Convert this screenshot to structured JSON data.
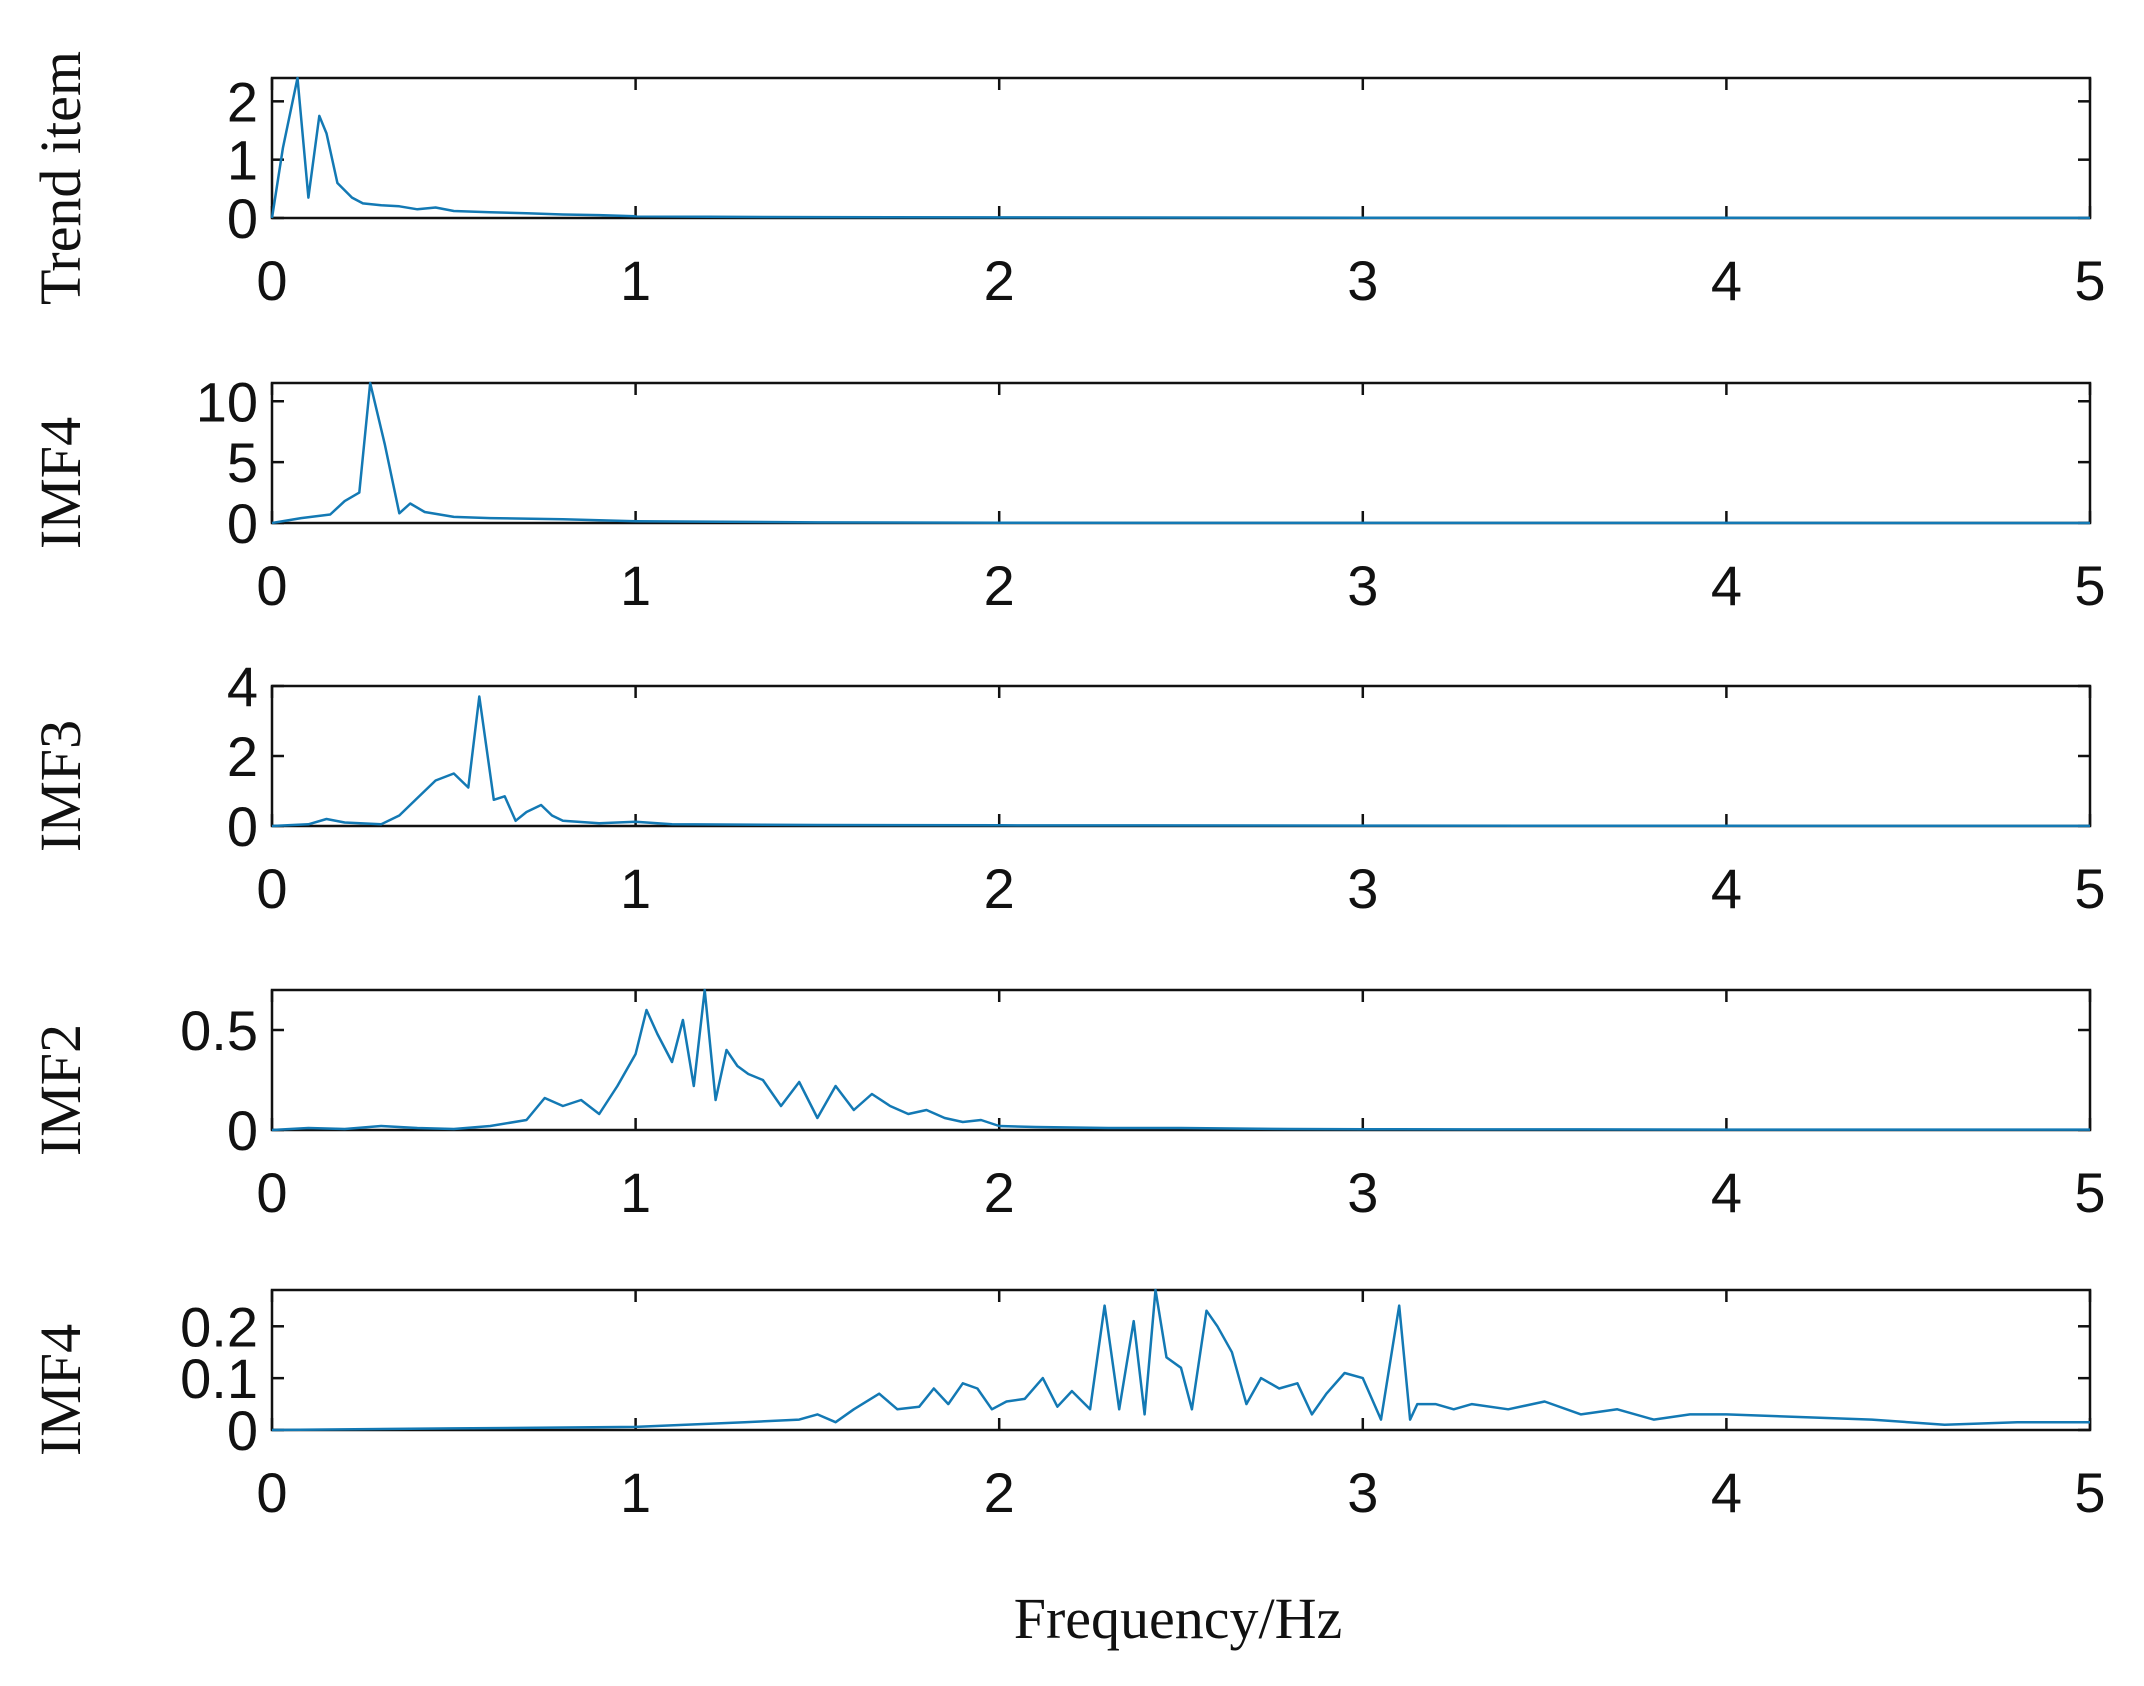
{
  "figure": {
    "xlabel": "Frequency/Hz",
    "line_color": "#1379b4"
  },
  "chart_data": [
    {
      "type": "line",
      "ylabel": "Trend item",
      "xlim": [
        0,
        5
      ],
      "ylim": [
        0,
        2.4
      ],
      "xticks": [
        "0",
        "1",
        "2",
        "3",
        "4",
        "5"
      ],
      "yticks": [
        0,
        1,
        2
      ],
      "ytick_labels": [
        "0",
        "1",
        "2"
      ],
      "x": [
        0,
        0.03,
        0.07,
        0.1,
        0.13,
        0.15,
        0.18,
        0.22,
        0.25,
        0.3,
        0.35,
        0.4,
        0.45,
        0.5,
        0.6,
        0.7,
        0.8,
        0.9,
        1.0,
        1.2,
        1.5,
        2.0,
        3.0,
        4.0,
        5.0
      ],
      "y": [
        0,
        1.2,
        2.4,
        0.35,
        1.75,
        1.45,
        0.6,
        0.35,
        0.25,
        0.22,
        0.2,
        0.15,
        0.18,
        0.12,
        0.1,
        0.08,
        0.06,
        0.05,
        0.03,
        0.02,
        0.015,
        0.01,
        0.005,
        0.003,
        0.002
      ]
    },
    {
      "type": "line",
      "ylabel": "IMF4",
      "xlim": [
        0,
        5
      ],
      "ylim": [
        0,
        11.5
      ],
      "xticks": [
        "0",
        "1",
        "2",
        "3",
        "4",
        "5"
      ],
      "yticks": [
        0,
        5,
        10
      ],
      "ytick_labels": [
        "0",
        "5",
        "10"
      ],
      "x": [
        0,
        0.08,
        0.16,
        0.2,
        0.24,
        0.27,
        0.31,
        0.35,
        0.38,
        0.42,
        0.5,
        0.6,
        0.8,
        1.0,
        1.5,
        2.0,
        3.0,
        4.0,
        5.0
      ],
      "y": [
        0,
        0.4,
        0.7,
        1.8,
        2.5,
        11.5,
        6.5,
        0.8,
        1.6,
        0.9,
        0.5,
        0.4,
        0.3,
        0.15,
        0.05,
        0.02,
        0.01,
        0.005,
        0.003
      ]
    },
    {
      "type": "line",
      "ylabel": "IMF3",
      "xlim": [
        0,
        5
      ],
      "ylim": [
        0,
        4
      ],
      "xticks": [
        "0",
        "1",
        "2",
        "3",
        "4",
        "5"
      ],
      "yticks": [
        0,
        2,
        4
      ],
      "ytick_labels": [
        "0",
        "2",
        "4"
      ],
      "x": [
        0,
        0.1,
        0.15,
        0.2,
        0.3,
        0.35,
        0.4,
        0.45,
        0.5,
        0.54,
        0.57,
        0.61,
        0.64,
        0.67,
        0.7,
        0.74,
        0.77,
        0.8,
        0.9,
        1.0,
        1.1,
        1.5,
        2.0,
        3.0,
        4.0,
        5.0
      ],
      "y": [
        0,
        0.05,
        0.2,
        0.1,
        0.05,
        0.3,
        0.8,
        1.3,
        1.5,
        1.1,
        3.7,
        0.75,
        0.85,
        0.15,
        0.4,
        0.6,
        0.3,
        0.15,
        0.08,
        0.12,
        0.05,
        0.03,
        0.02,
        0.01,
        0.005,
        0.003
      ]
    },
    {
      "type": "line",
      "ylabel": "IMF2",
      "xlim": [
        0,
        5
      ],
      "ylim": [
        0,
        0.7
      ],
      "xticks": [
        "0",
        "1",
        "2",
        "3",
        "4",
        "5"
      ],
      "yticks": [
        0,
        0.5
      ],
      "ytick_labels": [
        "0",
        "0.5"
      ],
      "x": [
        0,
        0.1,
        0.2,
        0.3,
        0.4,
        0.5,
        0.6,
        0.7,
        0.75,
        0.8,
        0.85,
        0.9,
        0.95,
        1.0,
        1.03,
        1.06,
        1.1,
        1.13,
        1.16,
        1.19,
        1.22,
        1.25,
        1.28,
        1.31,
        1.35,
        1.4,
        1.45,
        1.5,
        1.55,
        1.6,
        1.65,
        1.7,
        1.75,
        1.8,
        1.85,
        1.9,
        1.95,
        2.0,
        2.1,
        2.3,
        2.5,
        2.8,
        3.0,
        3.3,
        3.6,
        4.0,
        4.5,
        5.0
      ],
      "y": [
        0,
        0.01,
        0.005,
        0.02,
        0.01,
        0.005,
        0.02,
        0.05,
        0.16,
        0.12,
        0.15,
        0.08,
        0.22,
        0.38,
        0.6,
        0.48,
        0.34,
        0.55,
        0.22,
        0.7,
        0.15,
        0.4,
        0.32,
        0.28,
        0.25,
        0.12,
        0.24,
        0.06,
        0.22,
        0.1,
        0.18,
        0.12,
        0.08,
        0.1,
        0.06,
        0.04,
        0.05,
        0.02,
        0.015,
        0.01,
        0.01,
        0.005,
        0.004,
        0.003,
        0.003,
        0.002,
        0.002,
        0.002
      ]
    },
    {
      "type": "line",
      "ylabel": "IMF4",
      "xlim": [
        0,
        5
      ],
      "ylim": [
        0,
        0.27
      ],
      "xticks": [
        "0",
        "1",
        "2",
        "3",
        "4",
        "5"
      ],
      "yticks": [
        0,
        0.1,
        0.2
      ],
      "ytick_labels": [
        "0",
        "0.1",
        "0.2"
      ],
      "x": [
        0,
        0.5,
        1.0,
        1.3,
        1.45,
        1.5,
        1.55,
        1.6,
        1.67,
        1.72,
        1.78,
        1.82,
        1.86,
        1.9,
        1.94,
        1.98,
        2.02,
        2.07,
        2.12,
        2.16,
        2.2,
        2.25,
        2.29,
        2.33,
        2.37,
        2.4,
        2.43,
        2.46,
        2.5,
        2.53,
        2.57,
        2.6,
        2.64,
        2.68,
        2.72,
        2.77,
        2.82,
        2.86,
        2.9,
        2.95,
        3.0,
        3.05,
        3.1,
        3.13,
        3.15,
        3.2,
        3.25,
        3.3,
        3.4,
        3.5,
        3.6,
        3.7,
        3.8,
        3.9,
        4.0,
        4.2,
        4.4,
        4.6,
        4.8,
        5.0
      ],
      "y": [
        0,
        0.003,
        0.006,
        0.015,
        0.02,
        0.03,
        0.015,
        0.04,
        0.07,
        0.04,
        0.045,
        0.08,
        0.05,
        0.09,
        0.08,
        0.04,
        0.055,
        0.06,
        0.1,
        0.045,
        0.075,
        0.04,
        0.24,
        0.04,
        0.21,
        0.03,
        0.27,
        0.14,
        0.12,
        0.04,
        0.23,
        0.2,
        0.15,
        0.05,
        0.1,
        0.08,
        0.09,
        0.03,
        0.07,
        0.11,
        0.1,
        0.02,
        0.24,
        0.02,
        0.05,
        0.05,
        0.04,
        0.05,
        0.04,
        0.055,
        0.03,
        0.04,
        0.02,
        0.03,
        0.03,
        0.025,
        0.02,
        0.01,
        0.015,
        0.015
      ]
    }
  ]
}
